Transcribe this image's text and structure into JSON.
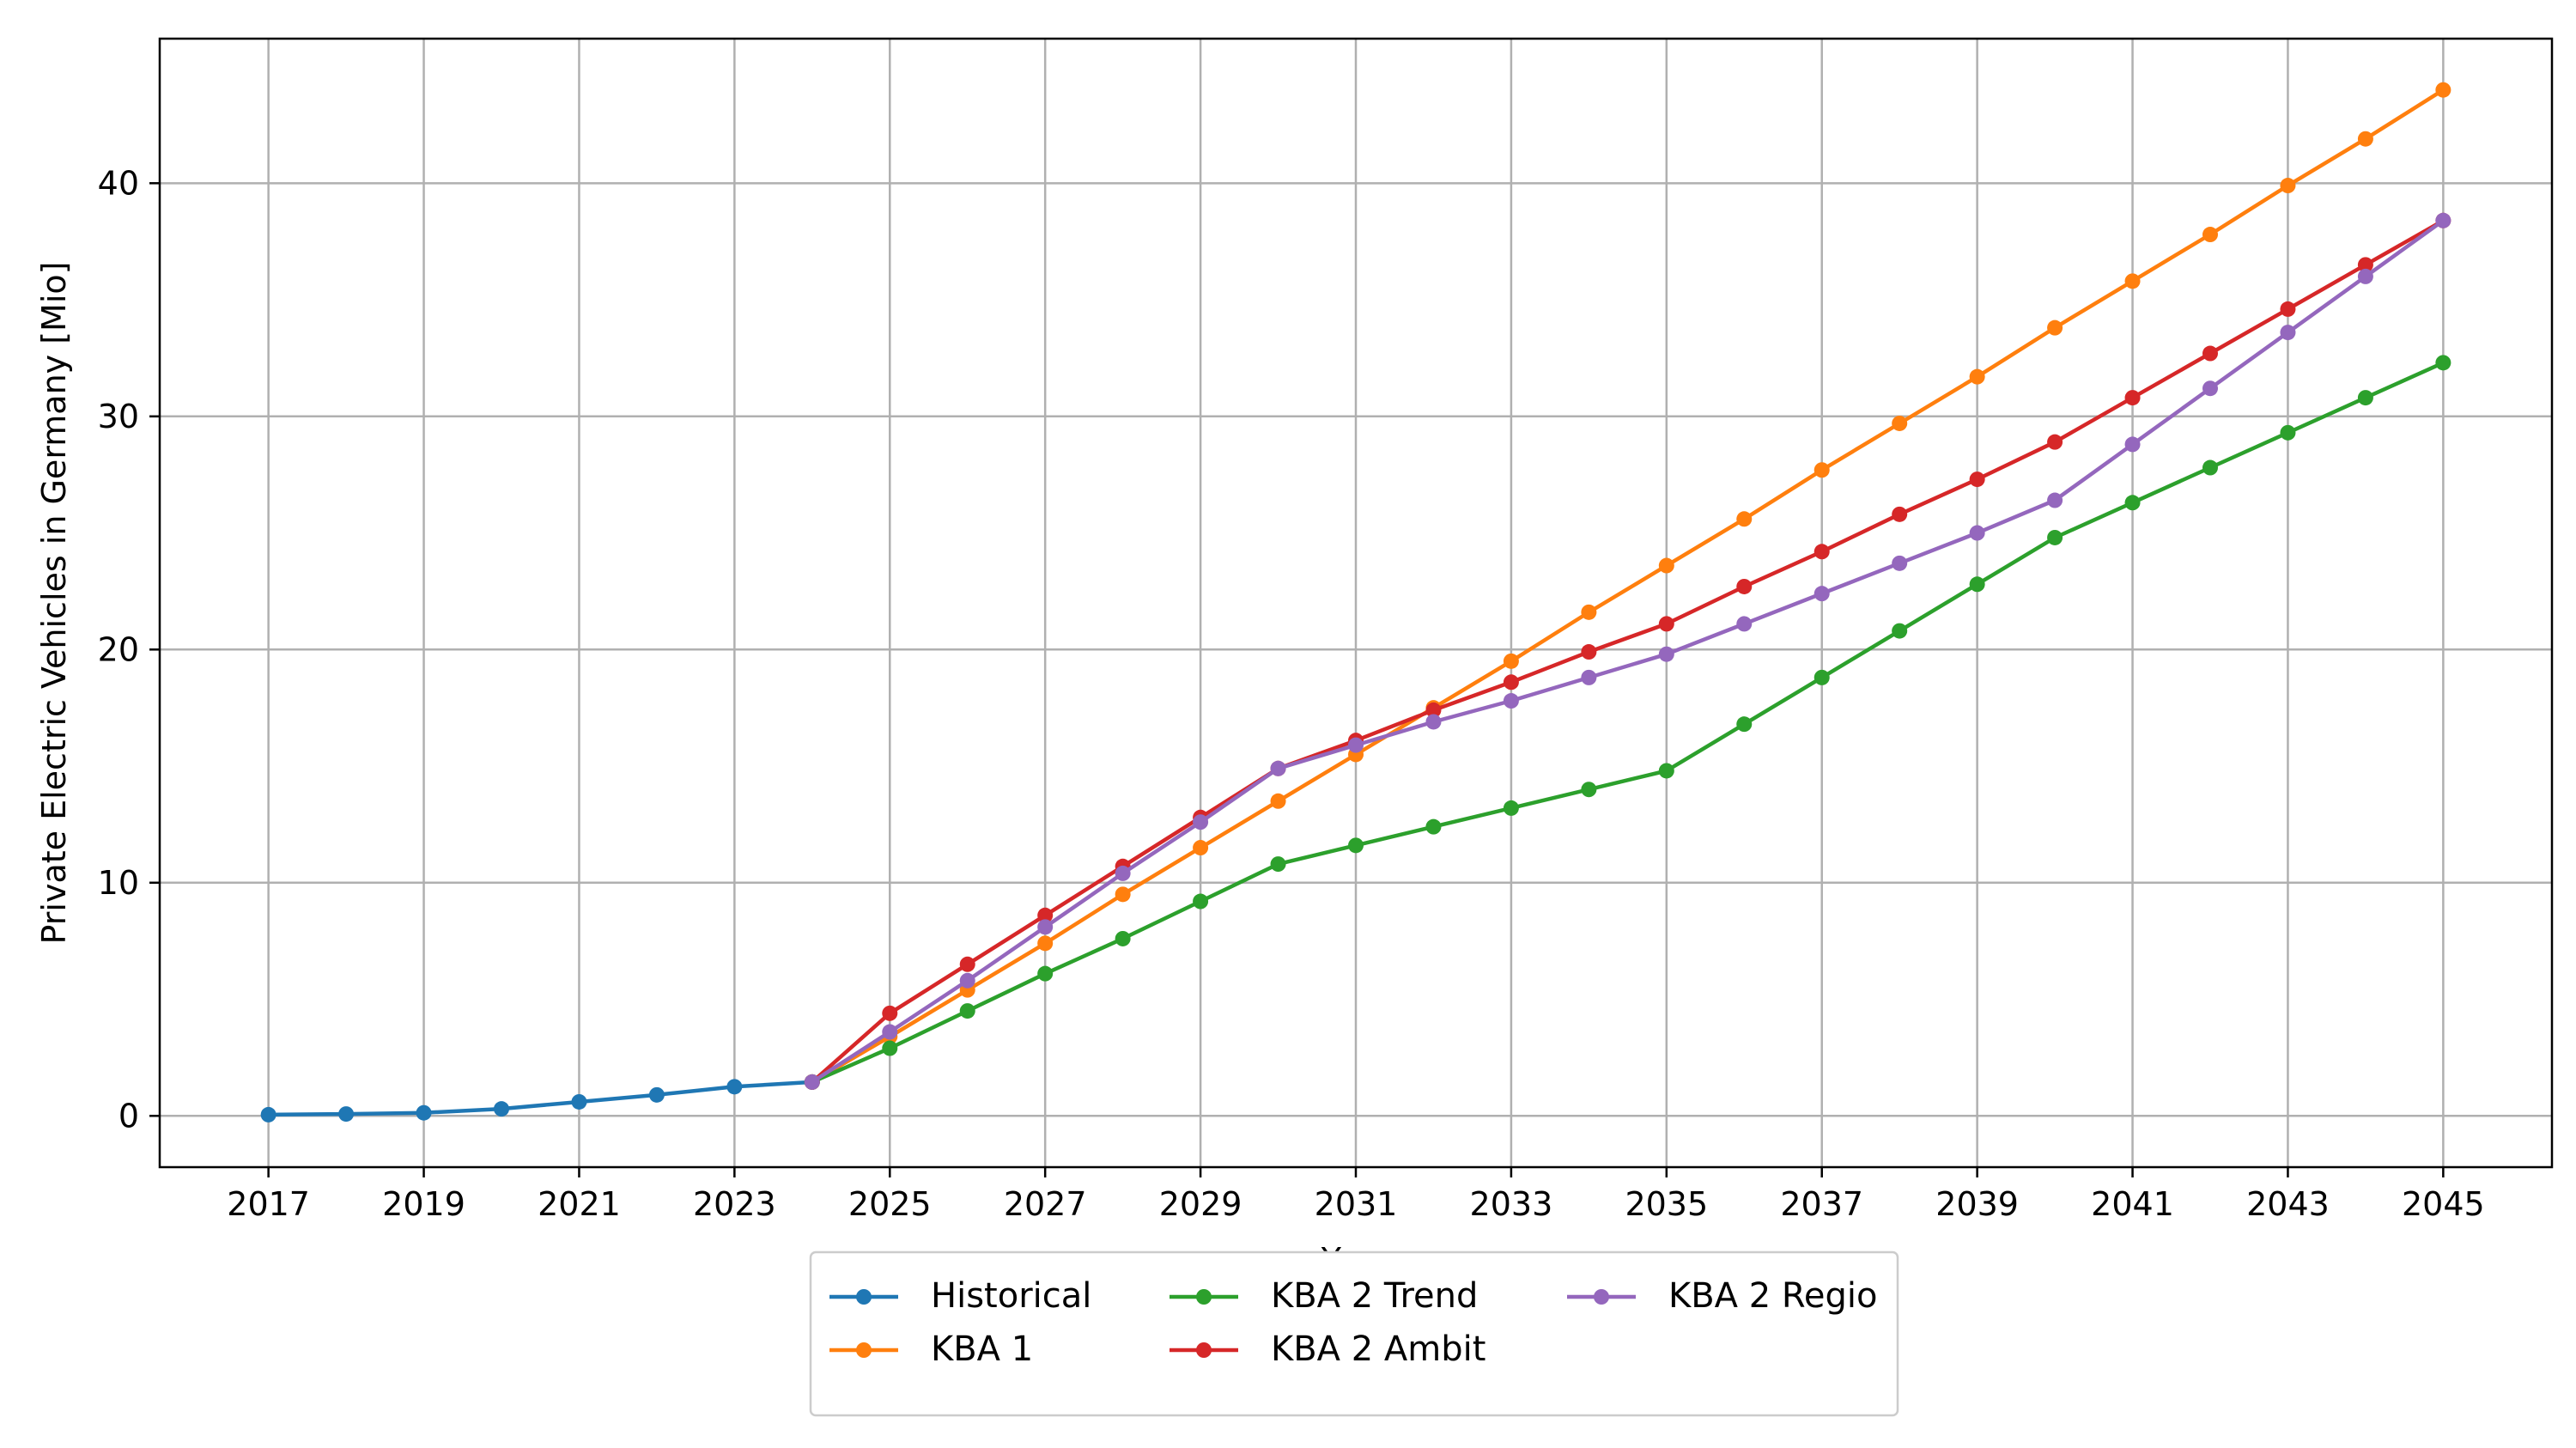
{
  "chart_data": {
    "type": "line",
    "title": "",
    "xlabel": "Year",
    "ylabel": "Private Electric Vehicles in Germany [Mio]",
    "xlim": [
      2015.6,
      2046.4
    ],
    "ylim": [
      -2.2,
      46.2
    ],
    "x_ticks": [
      2017,
      2019,
      2021,
      2023,
      2025,
      2027,
      2029,
      2031,
      2033,
      2035,
      2037,
      2039,
      2041,
      2043,
      2045
    ],
    "y_ticks": [
      0,
      10,
      20,
      30,
      40
    ],
    "grid": true,
    "legend_position": "bottom-center",
    "series": [
      {
        "name": "Historical",
        "color": "#1f77b4",
        "x": [
          2017,
          2018,
          2019,
          2020,
          2021,
          2022,
          2023,
          2024
        ],
        "values": [
          0.05,
          0.08,
          0.13,
          0.3,
          0.6,
          0.9,
          1.25,
          1.45
        ]
      },
      {
        "name": "KBA 1",
        "color": "#ff7f0e",
        "x": [
          2025,
          2026,
          2027,
          2028,
          2029,
          2030,
          2031,
          2032,
          2033,
          2034,
          2035,
          2036,
          2037,
          2038,
          2039,
          2040,
          2041,
          2042,
          2043,
          2044,
          2045
        ],
        "values": [
          3.4,
          5.4,
          7.4,
          9.5,
          11.5,
          13.5,
          15.5,
          17.5,
          19.5,
          21.6,
          23.6,
          25.6,
          27.7,
          29.7,
          31.7,
          33.8,
          35.8,
          37.8,
          39.9,
          41.9,
          44.0
        ]
      },
      {
        "name": "KBA 2 Trend",
        "color": "#2ca02c",
        "x": [
          2025,
          2026,
          2027,
          2028,
          2029,
          2030,
          2031,
          2032,
          2033,
          2034,
          2035,
          2036,
          2037,
          2038,
          2039,
          2040,
          2041,
          2042,
          2043,
          2044,
          2045
        ],
        "values": [
          2.9,
          4.5,
          6.1,
          7.6,
          9.2,
          10.8,
          11.6,
          12.4,
          13.2,
          14.0,
          14.8,
          16.8,
          18.8,
          20.8,
          22.8,
          24.8,
          26.3,
          27.8,
          29.3,
          30.8,
          32.3
        ]
      },
      {
        "name": "KBA 2 Ambit",
        "color": "#d62728",
        "x": [
          2025,
          2026,
          2027,
          2028,
          2029,
          2030,
          2031,
          2032,
          2033,
          2034,
          2035,
          2036,
          2037,
          2038,
          2039,
          2040,
          2041,
          2042,
          2043,
          2044,
          2045
        ],
        "values": [
          4.4,
          6.5,
          8.6,
          10.7,
          12.8,
          14.9,
          16.1,
          17.4,
          18.6,
          19.9,
          21.1,
          22.7,
          24.2,
          25.8,
          27.3,
          28.9,
          30.8,
          32.7,
          34.6,
          36.5,
          38.4
        ]
      },
      {
        "name": "KBA 2 Regio",
        "color": "#9467bd",
        "x": [
          2025,
          2026,
          2027,
          2028,
          2029,
          2030,
          2031,
          2032,
          2033,
          2034,
          2035,
          2036,
          2037,
          2038,
          2039,
          2040,
          2041,
          2042,
          2043,
          2044,
          2045
        ],
        "values": [
          3.6,
          5.8,
          8.1,
          10.4,
          12.6,
          14.9,
          15.9,
          16.9,
          17.8,
          18.8,
          19.8,
          21.1,
          22.4,
          23.7,
          25.0,
          26.4,
          28.8,
          31.2,
          33.6,
          36.0,
          38.4
        ]
      }
    ]
  }
}
